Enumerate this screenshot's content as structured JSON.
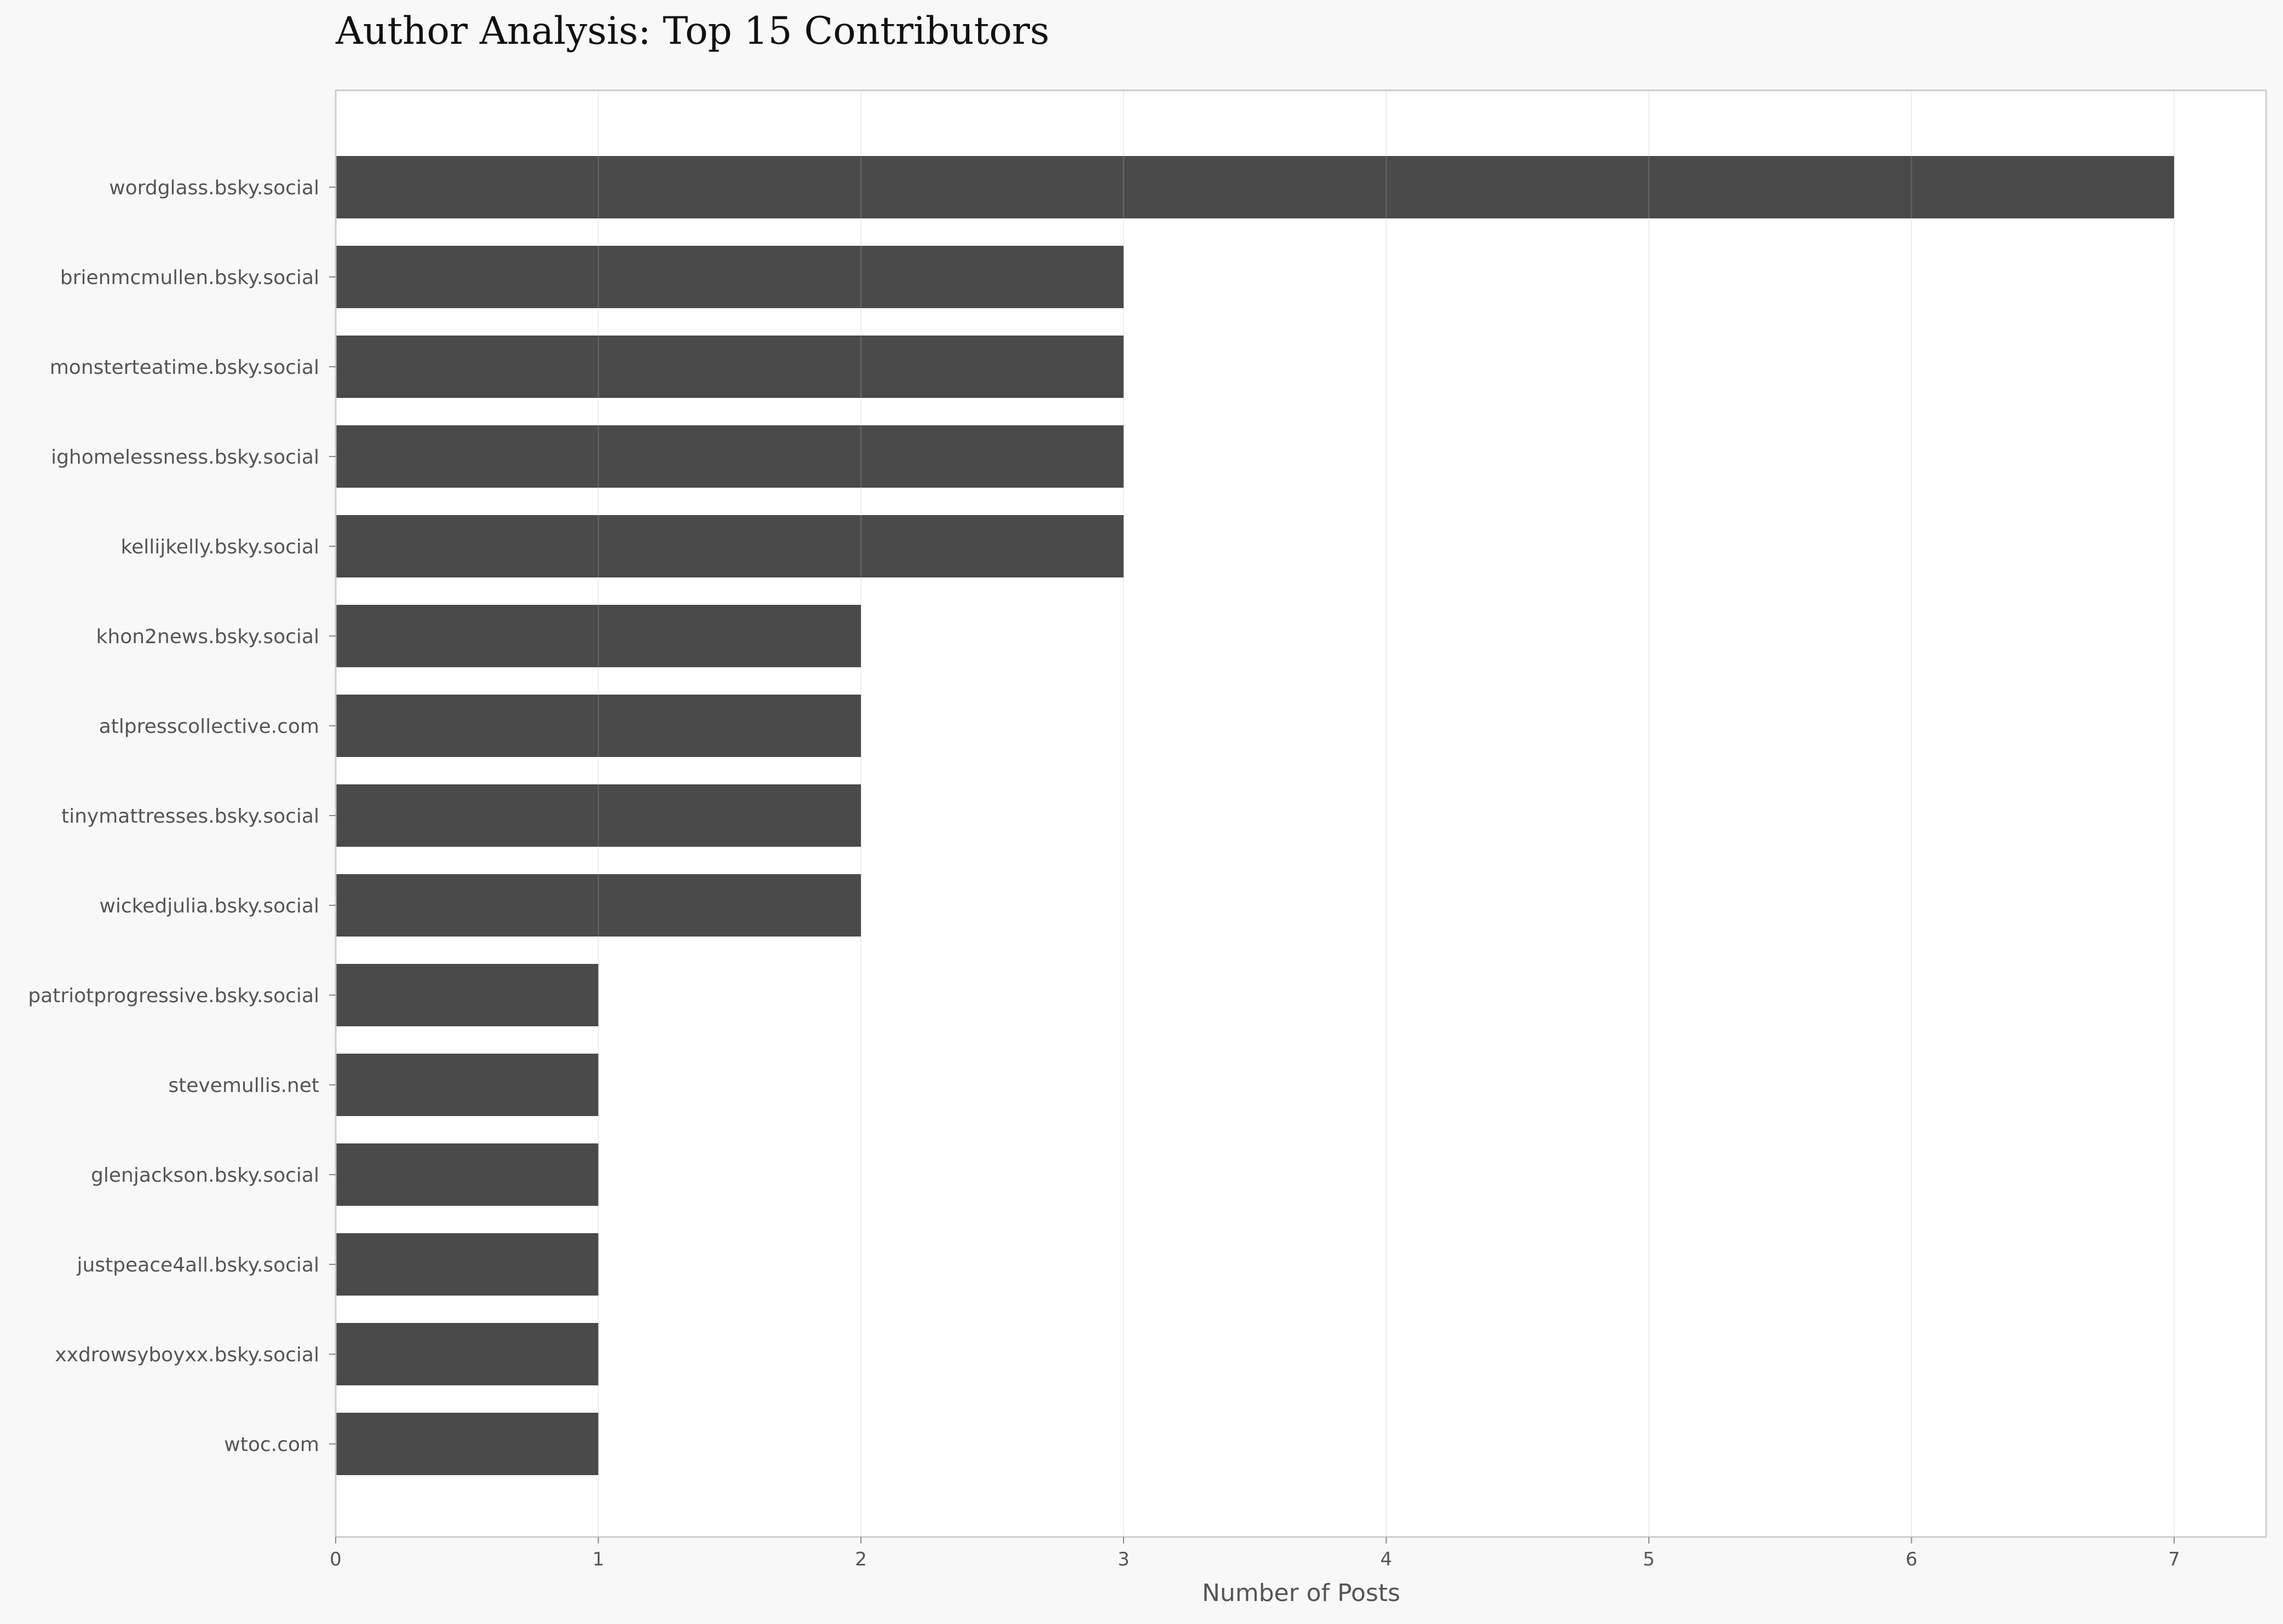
{
  "chart_data": {
    "type": "bar",
    "orientation": "horizontal",
    "title": "Author Analysis: Top 15 Contributors",
    "xlabel": "Number of Posts",
    "ylabel": "",
    "categories": [
      "wordglass.bsky.social",
      "brienmcmullen.bsky.social",
      "monsterteatime.bsky.social",
      "ighomelessness.bsky.social",
      "kellijkelly.bsky.social",
      "khon2news.bsky.social",
      "atlpresscollective.com",
      "tinymattresses.bsky.social",
      "wickedjulia.bsky.social",
      "patriotprogressive.bsky.social",
      "stevemullis.net",
      "glenjackson.bsky.social",
      "justpeace4all.bsky.social",
      "xxdrowsyboyxx.bsky.social",
      "wtoc.com"
    ],
    "values": [
      7,
      3,
      3,
      3,
      3,
      2,
      2,
      2,
      2,
      1,
      1,
      1,
      1,
      1,
      1
    ],
    "xlim": [
      0,
      7.35
    ],
    "xticks": [
      "0",
      "1",
      "2",
      "3",
      "4",
      "5",
      "6",
      "7"
    ],
    "grid": true,
    "colors": {
      "bar": "#4a4a4a",
      "background": "#f8f8f8",
      "plot_background": "#ffffff",
      "frame": "#cccccc",
      "grid": "#eeeeee",
      "grid_over_bar": "#666666",
      "text": "#555555",
      "title": "#111111"
    }
  }
}
